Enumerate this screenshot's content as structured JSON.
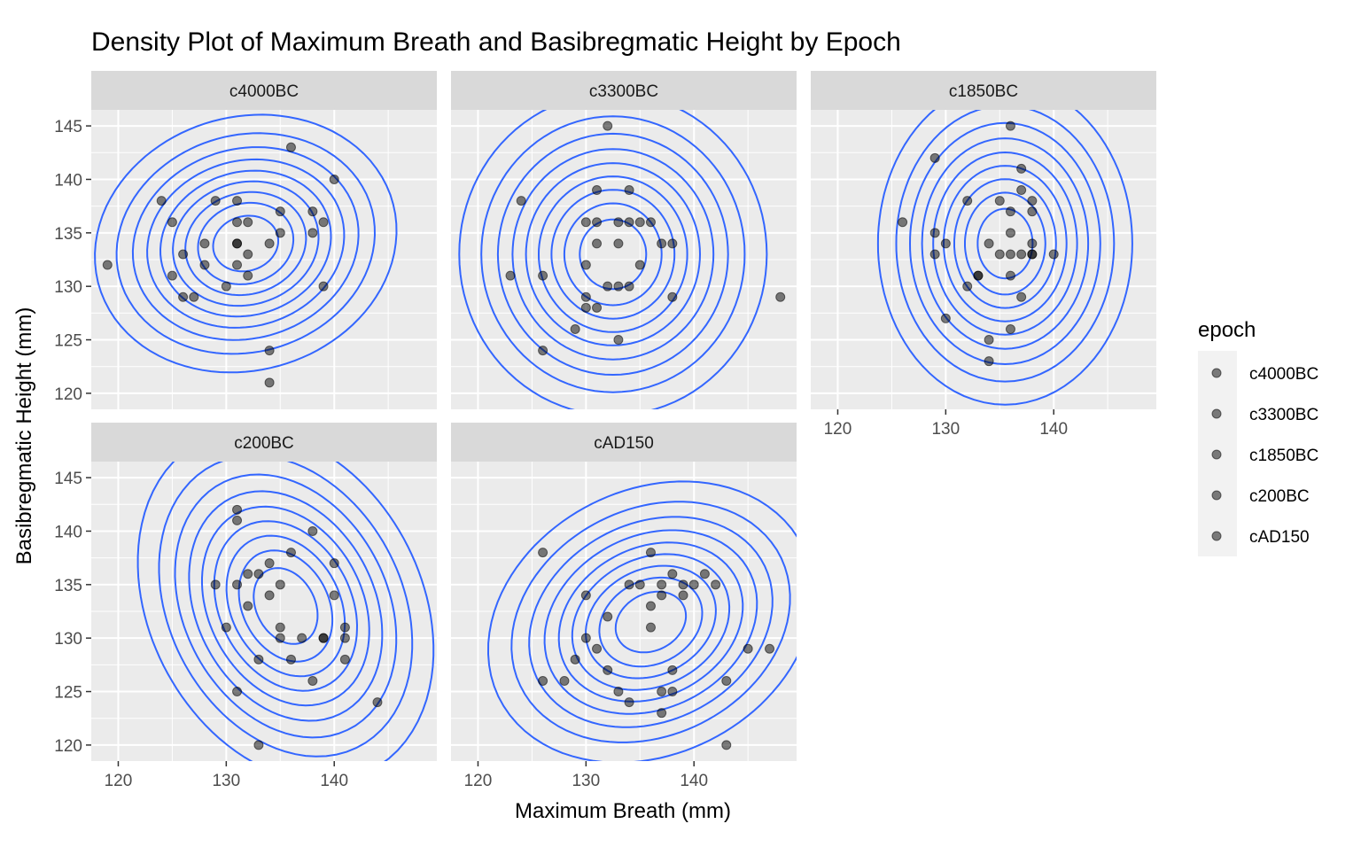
{
  "chart_data": {
    "type": "scatter",
    "title": "Density Plot of Maximum Breath and Basibregmatic Height by Epoch",
    "xlabel": "Maximum Breath (mm)",
    "ylabel": "Basibregmatic Height (mm)",
    "xlim": [
      117.5,
      149.5
    ],
    "ylim": [
      118.5,
      146.5
    ],
    "x_ticks": [
      120,
      130,
      140
    ],
    "y_ticks": [
      120,
      125,
      130,
      135,
      140,
      145
    ],
    "grid": true,
    "overlay": "2d density contours",
    "contour_color": "#3366ff",
    "point_color": "#000000",
    "point_alpha": 0.5,
    "legend": {
      "title": "epoch",
      "position": "right",
      "entries": [
        "c4000BC",
        "c3300BC",
        "c1850BC",
        "c200BC",
        "cAD150"
      ]
    },
    "facets": [
      {
        "name": "c4000BC",
        "points": [
          [
            119,
            132
          ],
          [
            124,
            138
          ],
          [
            125,
            136
          ],
          [
            125,
            131
          ],
          [
            126,
            129
          ],
          [
            126,
            133
          ],
          [
            127,
            129
          ],
          [
            128,
            134
          ],
          [
            128,
            132
          ],
          [
            129,
            138
          ],
          [
            130,
            130
          ],
          [
            131,
            138
          ],
          [
            131,
            136
          ],
          [
            131,
            134
          ],
          [
            131,
            134
          ],
          [
            131,
            132
          ],
          [
            132,
            136
          ],
          [
            132,
            133
          ],
          [
            132,
            131
          ],
          [
            134,
            134
          ],
          [
            134,
            124
          ],
          [
            134,
            121
          ],
          [
            135,
            137
          ],
          [
            135,
            135
          ],
          [
            136,
            143
          ],
          [
            138,
            137
          ],
          [
            138,
            135
          ],
          [
            139,
            136
          ],
          [
            139,
            130
          ],
          [
            140,
            140
          ]
        ],
        "density": {
          "cx": 131.8,
          "cy": 134.0,
          "sx": 5.1,
          "sy": 4.4,
          "rho": 0.1
        }
      },
      {
        "name": "c3300BC",
        "points": [
          [
            123,
            131
          ],
          [
            124,
            138
          ],
          [
            126,
            131
          ],
          [
            126,
            124
          ],
          [
            129,
            126
          ],
          [
            130,
            136
          ],
          [
            130,
            132
          ],
          [
            130,
            129
          ],
          [
            130,
            128
          ],
          [
            131,
            139
          ],
          [
            131,
            136
          ],
          [
            131,
            134
          ],
          [
            131,
            128
          ],
          [
            132,
            145
          ],
          [
            132,
            130
          ],
          [
            133,
            136
          ],
          [
            133,
            134
          ],
          [
            133,
            130
          ],
          [
            134,
            139
          ],
          [
            134,
            136
          ],
          [
            134,
            130
          ],
          [
            135,
            136
          ],
          [
            135,
            132
          ],
          [
            136,
            136
          ],
          [
            137,
            134
          ],
          [
            138,
            134
          ],
          [
            138,
            129
          ],
          [
            148,
            129
          ],
          [
            133,
            125
          ]
        ],
        "density": {
          "cx": 132.5,
          "cy": 133.0,
          "sx": 5.2,
          "sy": 5.5,
          "rho": 0.0
        }
      },
      {
        "name": "c1850BC",
        "points": [
          [
            126,
            136
          ],
          [
            129,
            142
          ],
          [
            129,
            135
          ],
          [
            129,
            133
          ],
          [
            130,
            134
          ],
          [
            130,
            127
          ],
          [
            132,
            138
          ],
          [
            132,
            130
          ],
          [
            133,
            131
          ],
          [
            133,
            131
          ],
          [
            134,
            134
          ],
          [
            134,
            125
          ],
          [
            134,
            123
          ],
          [
            135,
            138
          ],
          [
            135,
            133
          ],
          [
            136,
            145
          ],
          [
            136,
            137
          ],
          [
            136,
            135
          ],
          [
            136,
            133
          ],
          [
            136,
            131
          ],
          [
            136,
            126
          ],
          [
            137,
            141
          ],
          [
            137,
            139
          ],
          [
            137,
            133
          ],
          [
            137,
            129
          ],
          [
            138,
            138
          ],
          [
            138,
            137
          ],
          [
            138,
            134
          ],
          [
            138,
            133
          ],
          [
            138,
            133
          ],
          [
            140,
            133
          ]
        ],
        "density": {
          "cx": 135.5,
          "cy": 134.0,
          "sx": 4.3,
          "sy": 5.5,
          "rho": 0.0
        }
      },
      {
        "name": "c200BC",
        "points": [
          [
            129,
            135
          ],
          [
            130,
            131
          ],
          [
            131,
            142
          ],
          [
            131,
            141
          ],
          [
            131,
            135
          ],
          [
            131,
            125
          ],
          [
            132,
            136
          ],
          [
            132,
            133
          ],
          [
            133,
            136
          ],
          [
            133,
            128
          ],
          [
            133,
            120
          ],
          [
            134,
            137
          ],
          [
            134,
            134
          ],
          [
            135,
            135
          ],
          [
            135,
            131
          ],
          [
            135,
            130
          ],
          [
            136,
            138
          ],
          [
            136,
            128
          ],
          [
            137,
            130
          ],
          [
            138,
            140
          ],
          [
            138,
            126
          ],
          [
            139,
            130
          ],
          [
            139,
            130
          ],
          [
            140,
            137
          ],
          [
            140,
            134
          ],
          [
            141,
            131
          ],
          [
            141,
            130
          ],
          [
            141,
            128
          ],
          [
            144,
            124
          ]
        ],
        "density": {
          "cx": 135.5,
          "cy": 133.0,
          "sx": 5.0,
          "sy": 6.0,
          "rho": -0.25
        }
      },
      {
        "name": "cAD150",
        "points": [
          [
            126,
            138
          ],
          [
            126,
            126
          ],
          [
            128,
            126
          ],
          [
            129,
            128
          ],
          [
            130,
            134
          ],
          [
            130,
            130
          ],
          [
            131,
            129
          ],
          [
            132,
            132
          ],
          [
            132,
            127
          ],
          [
            133,
            125
          ],
          [
            134,
            135
          ],
          [
            134,
            124
          ],
          [
            135,
            135
          ],
          [
            136,
            138
          ],
          [
            136,
            133
          ],
          [
            136,
            131
          ],
          [
            137,
            134
          ],
          [
            137,
            135
          ],
          [
            137,
            125
          ],
          [
            137,
            123
          ],
          [
            138,
            136
          ],
          [
            138,
            127
          ],
          [
            138,
            125
          ],
          [
            139,
            135
          ],
          [
            139,
            134
          ],
          [
            140,
            135
          ],
          [
            141,
            136
          ],
          [
            142,
            135
          ],
          [
            143,
            126
          ],
          [
            143,
            120
          ],
          [
            145,
            129
          ],
          [
            147,
            129
          ]
        ],
        "density": {
          "cx": 136.0,
          "cy": 131.5,
          "sx": 5.5,
          "sy": 4.8,
          "rho": 0.2
        }
      }
    ]
  }
}
